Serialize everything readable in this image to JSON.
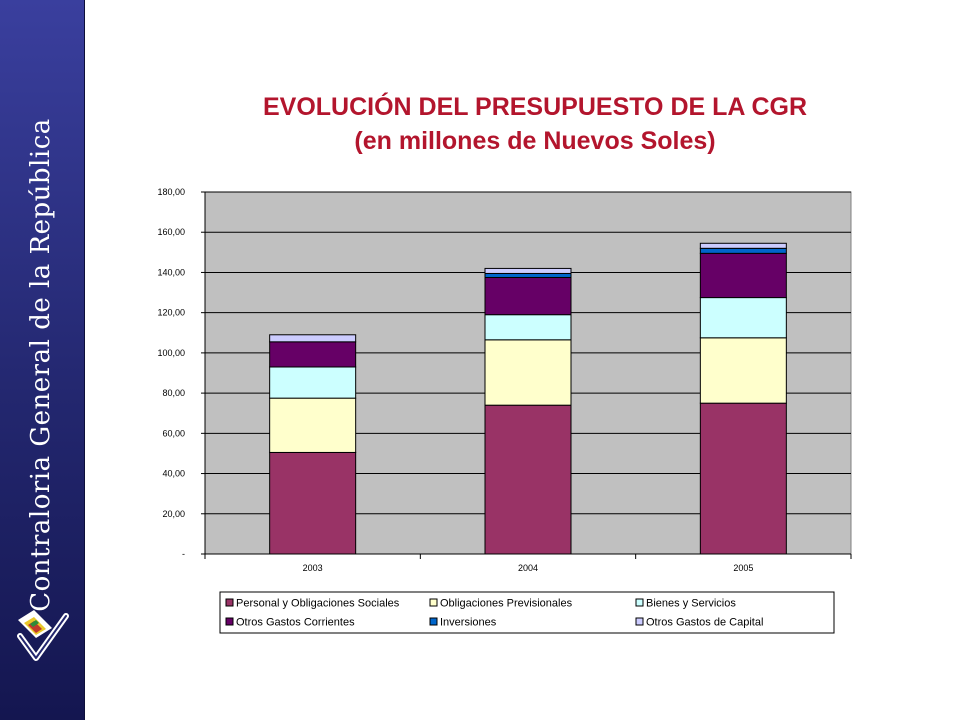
{
  "sidebar": {
    "text": "Contraloria General de la República"
  },
  "title": {
    "line1": "EVOLUCIÓN DEL PRESUPUESTO DE LA CGR",
    "line2": "(en millones de Nuevos Soles)"
  },
  "chart_data": {
    "type": "bar",
    "stacked": true,
    "categories": [
      "2003",
      "2004",
      "2005"
    ],
    "ylim": [
      0,
      180
    ],
    "yticks": [
      0,
      20,
      40,
      60,
      80,
      100,
      120,
      140,
      160,
      180
    ],
    "ytick_labels": [
      "-",
      "20,00",
      "40,00",
      "60,00",
      "80,00",
      "100,00",
      "120,00",
      "140,00",
      "160,00",
      "180,00"
    ],
    "grid": true,
    "legend_position": "bottom",
    "series": [
      {
        "name": "Personal y Obligaciones Sociales",
        "color": "#993366",
        "values": [
          50.5,
          74.0,
          75.0
        ]
      },
      {
        "name": "Obligaciones Previsionales",
        "color": "#ffffcc",
        "values": [
          27.0,
          32.5,
          32.5
        ]
      },
      {
        "name": "Bienes y Servicios",
        "color": "#ccffff",
        "values": [
          15.5,
          12.5,
          20.0
        ]
      },
      {
        "name": "Otros Gastos Corrientes",
        "color": "#660066",
        "values": [
          12.5,
          18.5,
          22.0
        ]
      },
      {
        "name": "Inversiones",
        "color": "#0066cc",
        "values": [
          0.0,
          2.0,
          2.5
        ]
      },
      {
        "name": "Otros Gastos de Capital",
        "color": "#ccccff",
        "values": [
          3.5,
          2.5,
          2.5
        ]
      }
    ]
  },
  "colors": {
    "title": "#b3152d",
    "plot_background": "#c0c0c0",
    "sidebar": "#23276f"
  }
}
